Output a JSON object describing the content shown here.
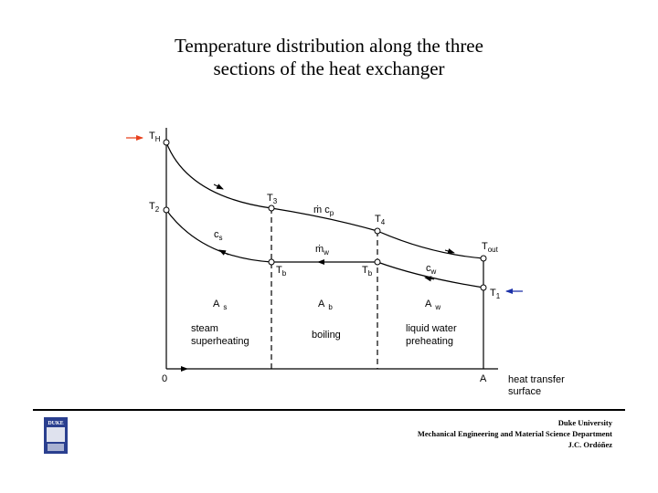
{
  "title": {
    "line1": "Temperature distribution along the three",
    "line2": "sections of the heat exchanger"
  },
  "diagram": {
    "labels": {
      "TH": {
        "main": "T",
        "sub": "H"
      },
      "T2": {
        "main": "T",
        "sub": "2"
      },
      "T3": {
        "main": "T",
        "sub": "3"
      },
      "T4": {
        "main": "T",
        "sub": "4"
      },
      "Tout": {
        "main": "T",
        "sub": "out"
      },
      "T1": {
        "main": "T",
        "sub": "1"
      },
      "Tb_left": {
        "main": "T",
        "sub": "b"
      },
      "Tb_right": {
        "main": "T",
        "sub": "b"
      },
      "mcp": {
        "main": "ṁ c",
        "sub": "p"
      },
      "mw": {
        "main": "ṁ",
        "sub": "w"
      },
      "cs": {
        "main": "c",
        "sub": "s"
      },
      "cw": {
        "main": "c",
        "sub": "w"
      },
      "As": {
        "main": "A",
        "sub": "s"
      },
      "Ab": {
        "main": "A",
        "sub": "b"
      },
      "Aw": {
        "main": "A",
        "sub": "w"
      },
      "zero": "0",
      "A": "A",
      "axis_line1": "heat transfer",
      "axis_line2": "surface",
      "steam_line1": "steam",
      "steam_line2": "superheating",
      "boiling": "boiling",
      "liquid_line1": "liquid water",
      "liquid_line2": "preheating"
    },
    "colors": {
      "hot_inlet_arrow": "#e8401c",
      "cold_inlet_arrow": "#1a2fa8"
    }
  },
  "footer": {
    "line1": "Duke University",
    "line2": "Mechanical Engineering and Material Science Department",
    "line3": "J.C. Ordóñez"
  },
  "logo": {
    "text": "DUKE"
  }
}
